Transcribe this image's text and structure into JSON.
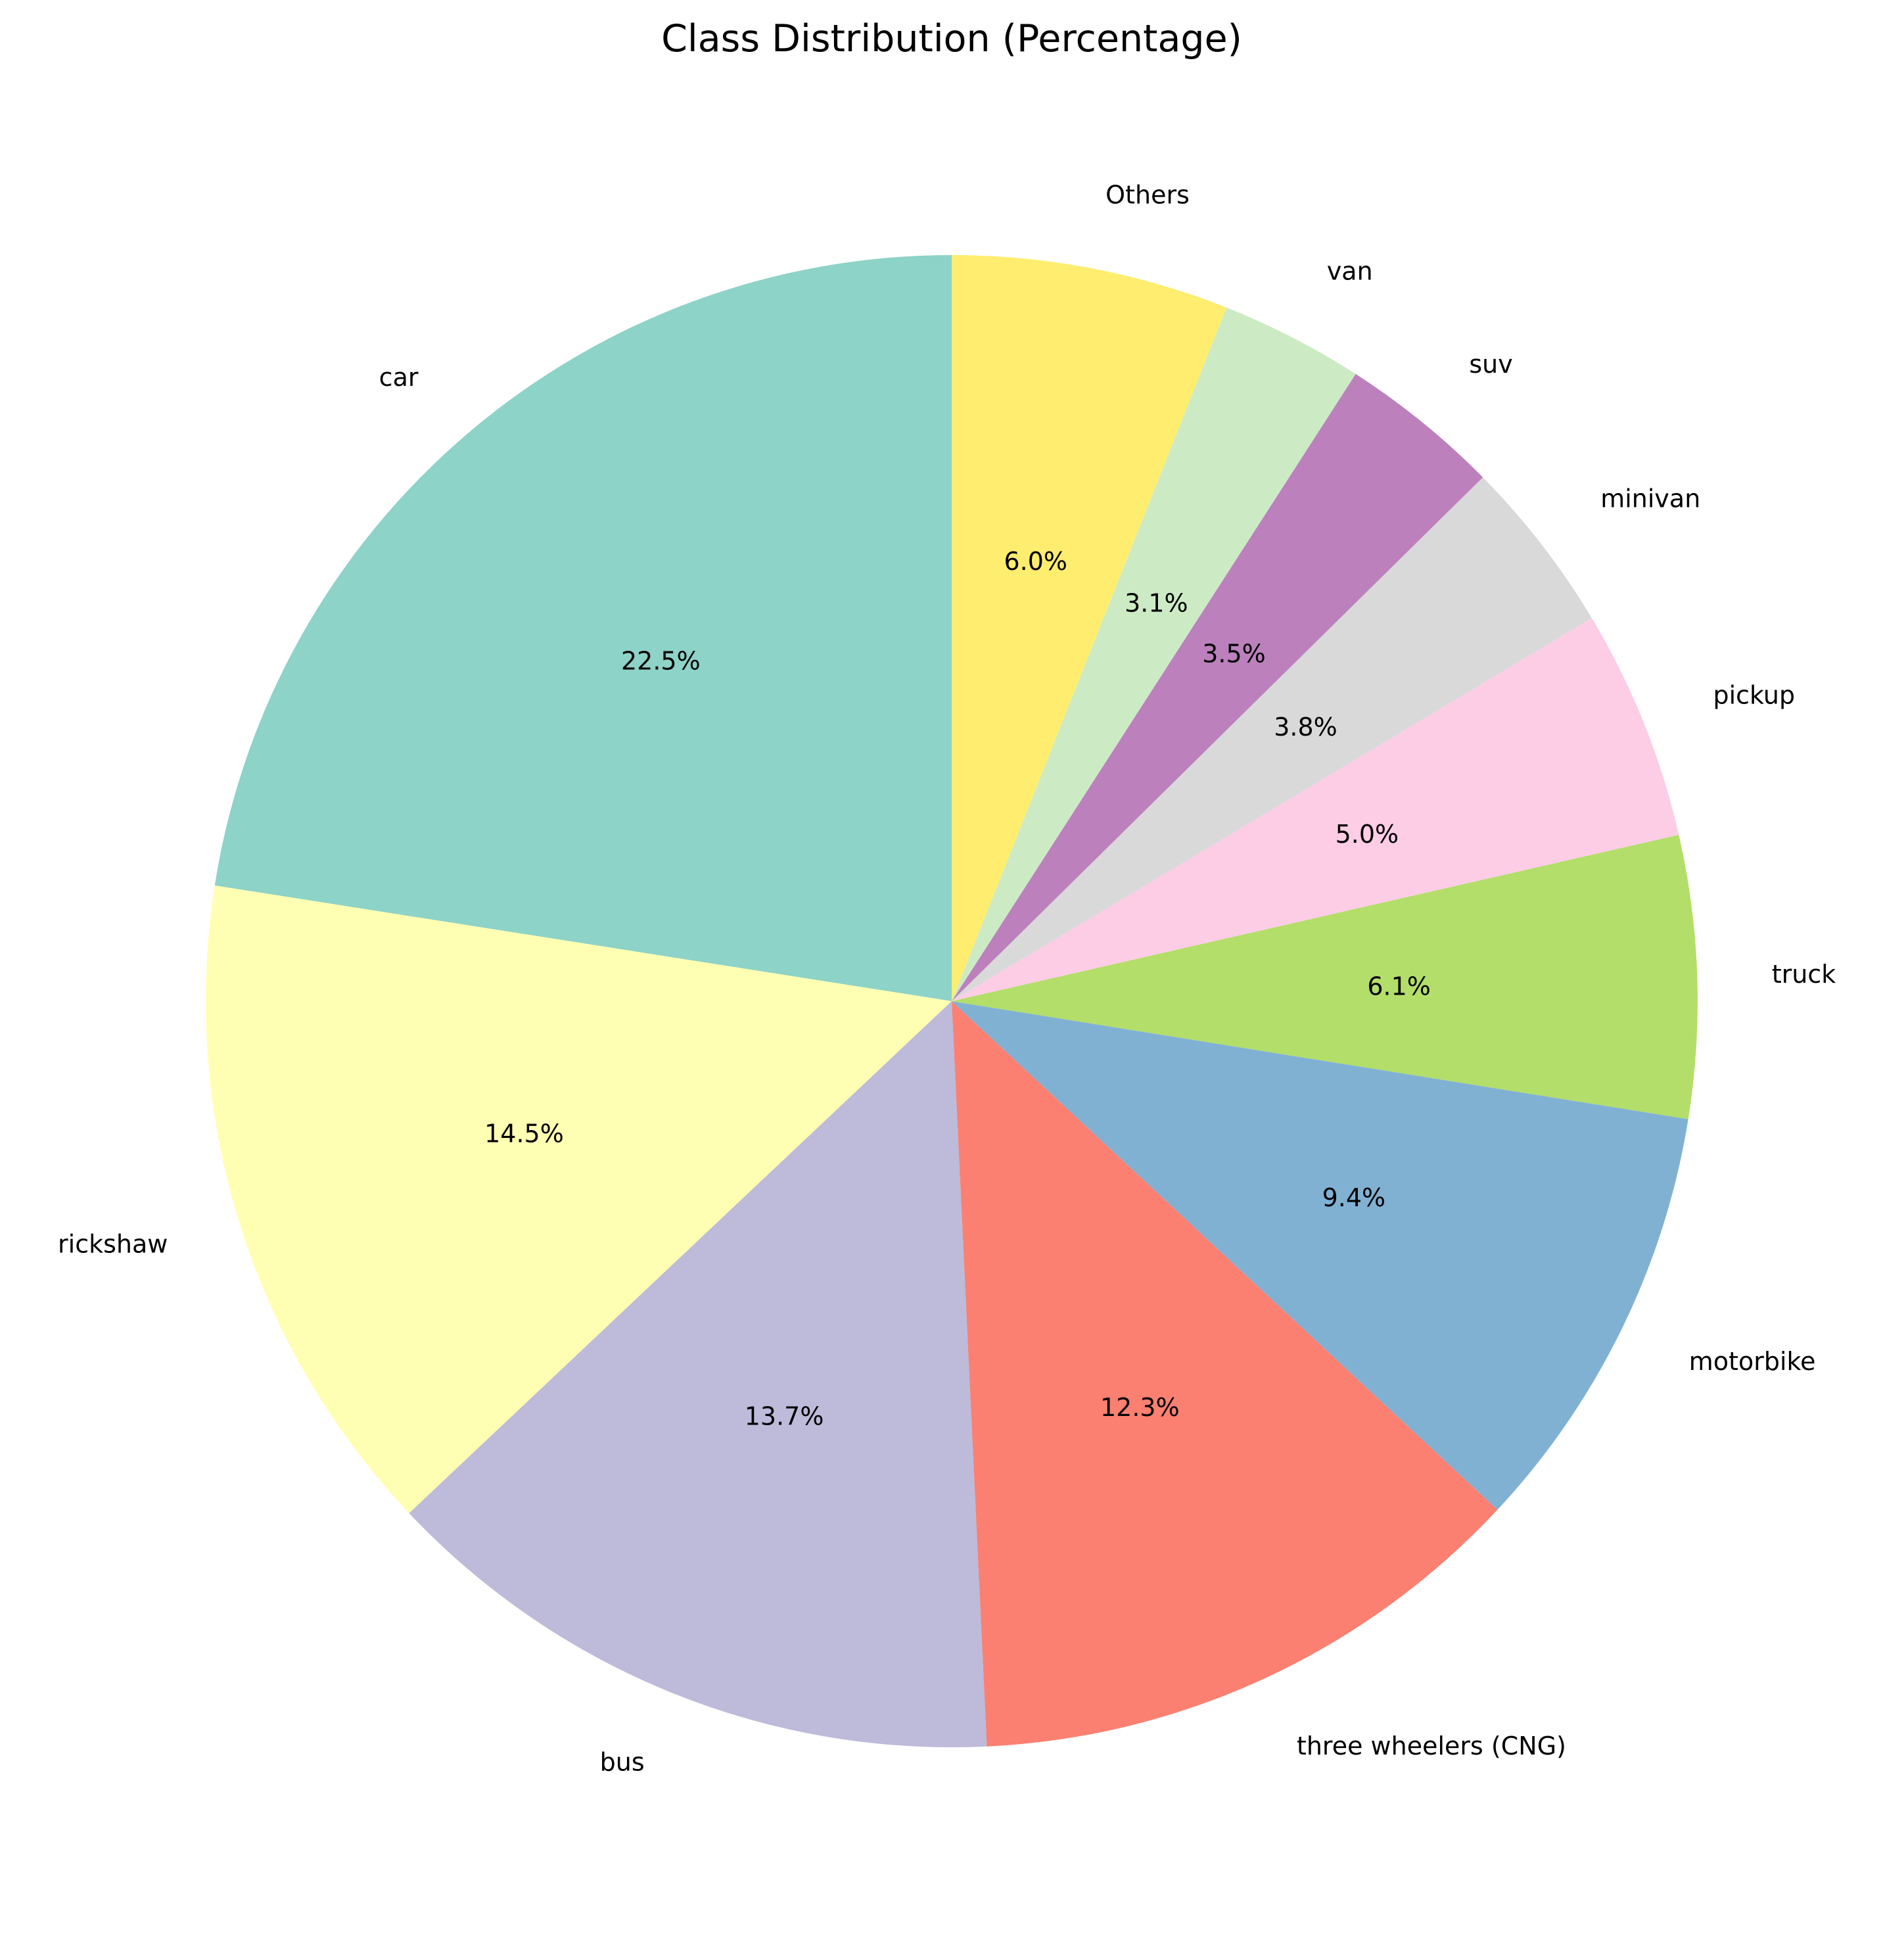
{
  "chart_data": {
    "type": "pie",
    "title": "Class Distribution (Percentage)",
    "start_angle_deg": 90,
    "direction": "counterclockwise",
    "slices": [
      {
        "label": "car",
        "value": 22.5,
        "pct_label": "22.5%",
        "color": "#8dd3c7"
      },
      {
        "label": "rickshaw",
        "value": 14.5,
        "pct_label": "14.5%",
        "color": "#ffffb3"
      },
      {
        "label": "bus",
        "value": 13.7,
        "pct_label": "13.7%",
        "color": "#bebada"
      },
      {
        "label": "three wheelers (CNG)",
        "value": 12.3,
        "pct_label": "12.3%",
        "color": "#fb8072"
      },
      {
        "label": "motorbike",
        "value": 9.4,
        "pct_label": "9.4%",
        "color": "#80b1d3"
      },
      {
        "label": "truck",
        "value": 6.1,
        "pct_label": "6.1%",
        "color": "#b3de69"
      },
      {
        "label": "pickup",
        "value": 5.0,
        "pct_label": "5.0%",
        "color": "#fccde5"
      },
      {
        "label": "minivan",
        "value": 3.8,
        "pct_label": "3.8%",
        "color": "#d9d9d9"
      },
      {
        "label": "suv",
        "value": 3.5,
        "pct_label": "3.5%",
        "color": "#bc80bd"
      },
      {
        "label": "van",
        "value": 3.1,
        "pct_label": "3.1%",
        "color": "#ccebc5"
      },
      {
        "label": "Others",
        "value": 6.0,
        "pct_label": "6.0%",
        "color": "#ffed6f"
      }
    ]
  }
}
